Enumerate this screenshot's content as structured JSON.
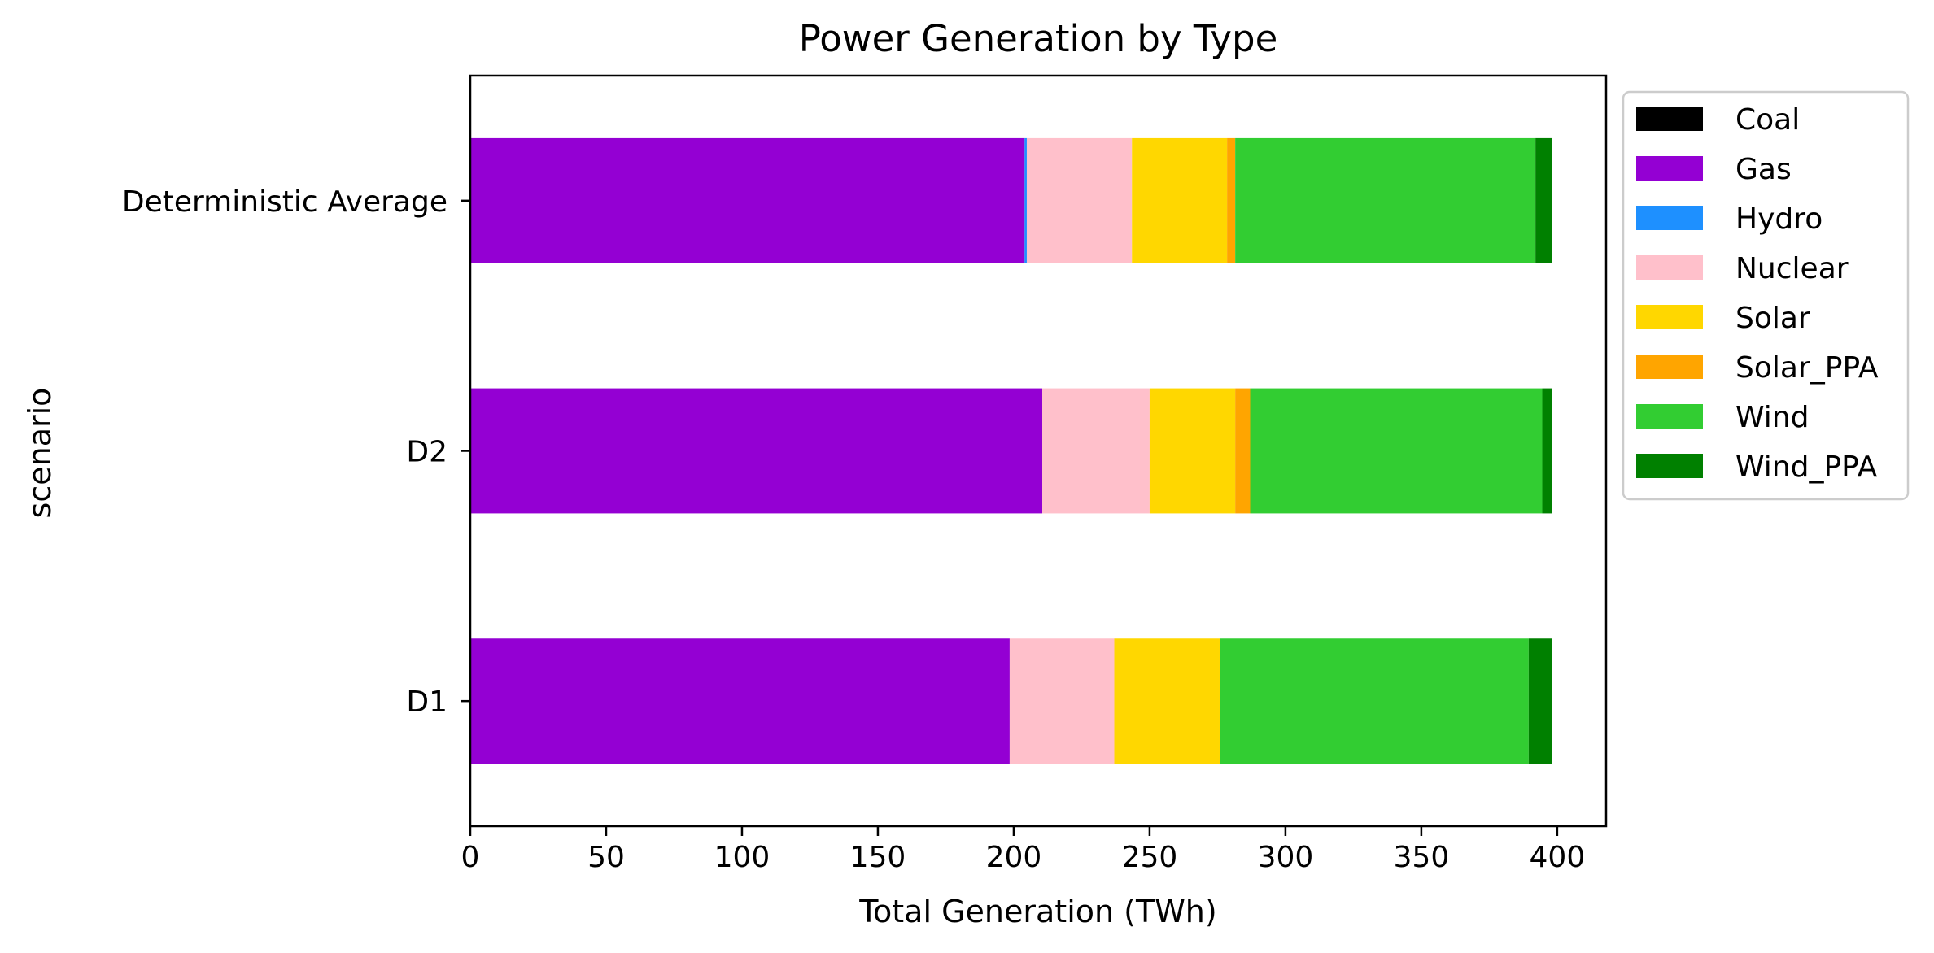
{
  "chart_data": {
    "type": "bar",
    "orientation": "horizontal",
    "stacked": true,
    "title": "Power Generation by Type",
    "xlabel": "Total Generation (TWh)",
    "ylabel": "scenario",
    "categories": [
      "D1",
      "D2",
      "Deterministic Average"
    ],
    "xlim": [
      0,
      418
    ],
    "xticks": [
      0,
      50,
      100,
      150,
      200,
      250,
      300,
      350,
      400
    ],
    "grid": false,
    "legend_position": "outside upper right",
    "series": [
      {
        "name": "Coal",
        "color": "#000000",
        "values": [
          0,
          0,
          0
        ]
      },
      {
        "name": "Gas",
        "color": "#9400D3",
        "values": [
          198.5,
          210.5,
          204.0
        ]
      },
      {
        "name": "Hydro",
        "color": "#1E90FF",
        "values": [
          0,
          0,
          0.8
        ]
      },
      {
        "name": "Nuclear",
        "color": "#FFC0CB",
        "values": [
          38.5,
          39.5,
          38.7
        ]
      },
      {
        "name": "Solar",
        "color": "#FFD700",
        "values": [
          39.0,
          31.5,
          35.0
        ]
      },
      {
        "name": "Solar_PPA",
        "color": "#FFA500",
        "values": [
          0,
          5.5,
          3.0
        ]
      },
      {
        "name": "Wind",
        "color": "#32CD32",
        "values": [
          113.5,
          107.5,
          110.5
        ]
      },
      {
        "name": "Wind_PPA",
        "color": "#008000",
        "values": [
          8.5,
          3.5,
          6.0
        ]
      }
    ]
  }
}
